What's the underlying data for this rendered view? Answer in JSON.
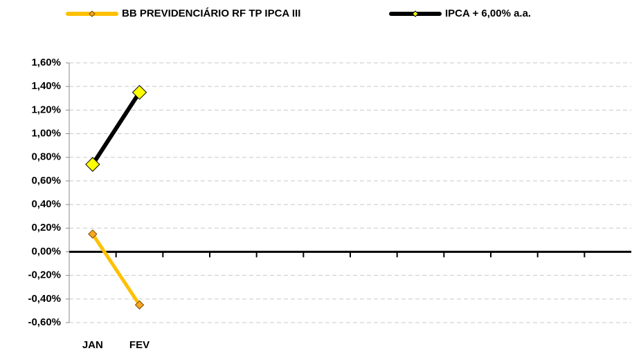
{
  "chart_data": {
    "type": "line",
    "categories": [
      "JAN",
      "FEV",
      null,
      null,
      null,
      null,
      null,
      null,
      null,
      null,
      null,
      null
    ],
    "series": [
      {
        "name": "BB PREVIDENCIÁRIO RF TP IPCA III",
        "color": "#FFC000",
        "marker_color": "#F5A623",
        "values": [
          0.15,
          -0.45,
          null,
          null,
          null,
          null,
          null,
          null,
          null,
          null,
          null,
          null
        ]
      },
      {
        "name": "IPCA + 6,00% a.a.",
        "color": "#000000",
        "marker_color": "#FFFF00",
        "values": [
          0.74,
          1.35,
          null,
          null,
          null,
          null,
          null,
          null,
          null,
          null,
          null,
          null
        ]
      }
    ],
    "ylim": [
      -0.6,
      1.6
    ],
    "yticks": [
      {
        "value": -0.6,
        "label": "-0,60%"
      },
      {
        "value": -0.4,
        "label": "-0,40%"
      },
      {
        "value": -0.2,
        "label": "-0,20%"
      },
      {
        "value": 0,
        "label": "0,00%"
      },
      {
        "value": 0.2,
        "label": "0,20%"
      },
      {
        "value": 0.4,
        "label": "0,40%"
      },
      {
        "value": 0.6,
        "label": "0,60%"
      },
      {
        "value": 0.8,
        "label": "0,80%"
      },
      {
        "value": 1.0,
        "label": "1,00%"
      },
      {
        "value": 1.2,
        "label": "1,20%"
      },
      {
        "value": 1.4,
        "label": "1,40%"
      },
      {
        "value": 1.6,
        "label": "1,60%"
      }
    ],
    "grid": true,
    "legend": "top"
  }
}
